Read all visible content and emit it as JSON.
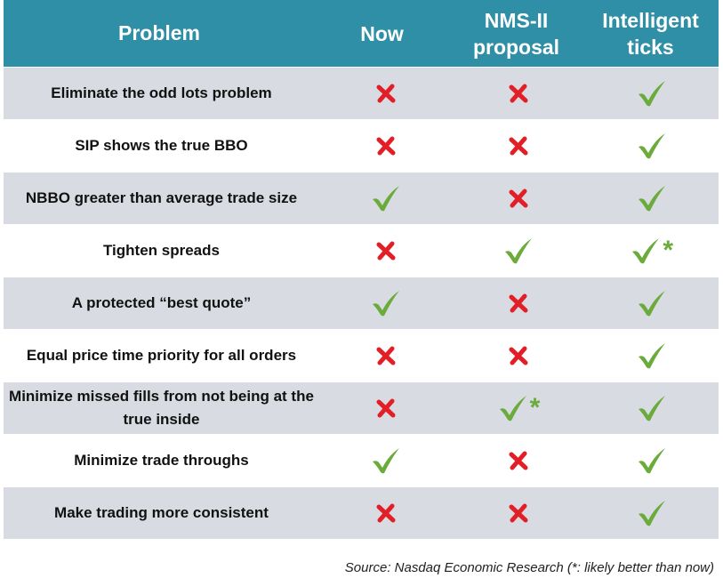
{
  "table": {
    "header": [
      "Problem",
      "Now",
      "NMS-II proposal",
      "Intelligent ticks"
    ],
    "rows": [
      {
        "label": "Eliminate the odd lots problem",
        "cells": [
          false,
          false,
          true
        ]
      },
      {
        "label": "SIP shows the true BBO",
        "cells": [
          false,
          false,
          true
        ]
      },
      {
        "label": "NBBO greater than average trade size",
        "cells": [
          true,
          false,
          true
        ]
      },
      {
        "label": "Tighten spreads",
        "cells": [
          false,
          true,
          {
            "ok": true,
            "note": "*"
          }
        ]
      },
      {
        "label": "A protected “best quote”",
        "cells": [
          true,
          false,
          true
        ]
      },
      {
        "label": "Equal price time priority for all orders",
        "cells": [
          false,
          false,
          true
        ]
      },
      {
        "label": "Minimize missed fills from not being at the true inside",
        "cells": [
          false,
          {
            "ok": true,
            "note": "*"
          },
          true
        ]
      },
      {
        "label": "Minimize trade throughs",
        "cells": [
          true,
          false,
          true
        ]
      },
      {
        "label": "Make trading more consistent",
        "cells": [
          false,
          false,
          true
        ]
      }
    ]
  },
  "source": "Source: Nasdaq Economic Research (*: likely better than now)"
}
